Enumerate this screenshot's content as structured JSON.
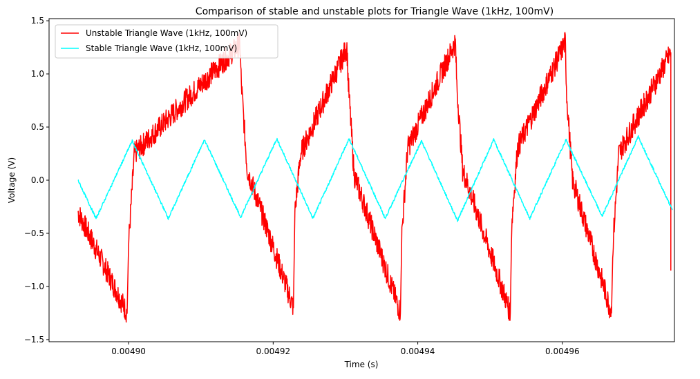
{
  "chart_data": {
    "type": "line",
    "title": "Comparison of stable and unstable plots for Triangle Wave (1kHz, 100mV)",
    "xlabel": "Time (s)",
    "ylabel": "Voltage (V)",
    "xlim": [
      0.004889,
      0.0049755
    ],
    "ylim": [
      -1.52,
      1.52
    ],
    "xticks": [
      0.0049,
      0.00492,
      0.00494,
      0.00496
    ],
    "xtick_labels": [
      "0.00490",
      "0.00492",
      "0.00494",
      "0.00496"
    ],
    "yticks": [
      -1.5,
      -1.0,
      -0.5,
      0.0,
      0.5,
      1.0,
      1.5
    ],
    "ytick_labels": [
      "−1.5",
      "−1.0",
      "−0.5",
      "0.0",
      "0.5",
      "1.0",
      "1.5"
    ],
    "grid": false,
    "legend_position": "top-left",
    "series": [
      {
        "name": "Unstable Triangle Wave (1kHz, 100mV)",
        "color": "#ff0000",
        "x": [
          0.004893,
          0.0048998,
          0.0049,
          0.0049008,
          0.0049154,
          0.0049156,
          0.0049164,
          0.0049228,
          0.004923,
          0.0049238,
          0.0049302,
          0.0049304,
          0.0049312,
          0.0049376,
          0.0049378,
          0.0049386,
          0.0049452,
          0.0049454,
          0.0049462,
          0.0049528,
          0.004953,
          0.0049538,
          0.0049604,
          0.0049606,
          0.0049614,
          0.0049668,
          0.004967,
          0.0049678,
          0.004975
        ],
        "y": [
          -0.3,
          -1.25,
          -0.6,
          0.25,
          1.28,
          0.9,
          0.1,
          -1.2,
          -0.3,
          0.25,
          1.25,
          0.9,
          0.05,
          -1.25,
          -0.5,
          0.3,
          1.3,
          0.9,
          0.1,
          -1.25,
          -0.4,
          0.3,
          1.3,
          0.8,
          0.0,
          -1.25,
          -0.6,
          0.25,
          1.2
        ]
      },
      {
        "name": "Stable Triangle Wave (1kHz, 100mV)",
        "color": "#00ffff",
        "x": [
          0.004893,
          0.0048955,
          0.0049005,
          0.0049055,
          0.0049105,
          0.0049155,
          0.0049205,
          0.0049255,
          0.0049305,
          0.0049355,
          0.0049405,
          0.0049455,
          0.0049505,
          0.0049555,
          0.0049605,
          0.0049655,
          0.0049705,
          0.0049752
        ],
        "y": [
          0.0,
          -0.36,
          0.37,
          -0.36,
          0.38,
          -0.35,
          0.39,
          -0.36,
          0.39,
          -0.36,
          0.37,
          -0.38,
          0.38,
          -0.36,
          0.38,
          -0.34,
          0.41,
          -0.28
        ]
      }
    ]
  }
}
